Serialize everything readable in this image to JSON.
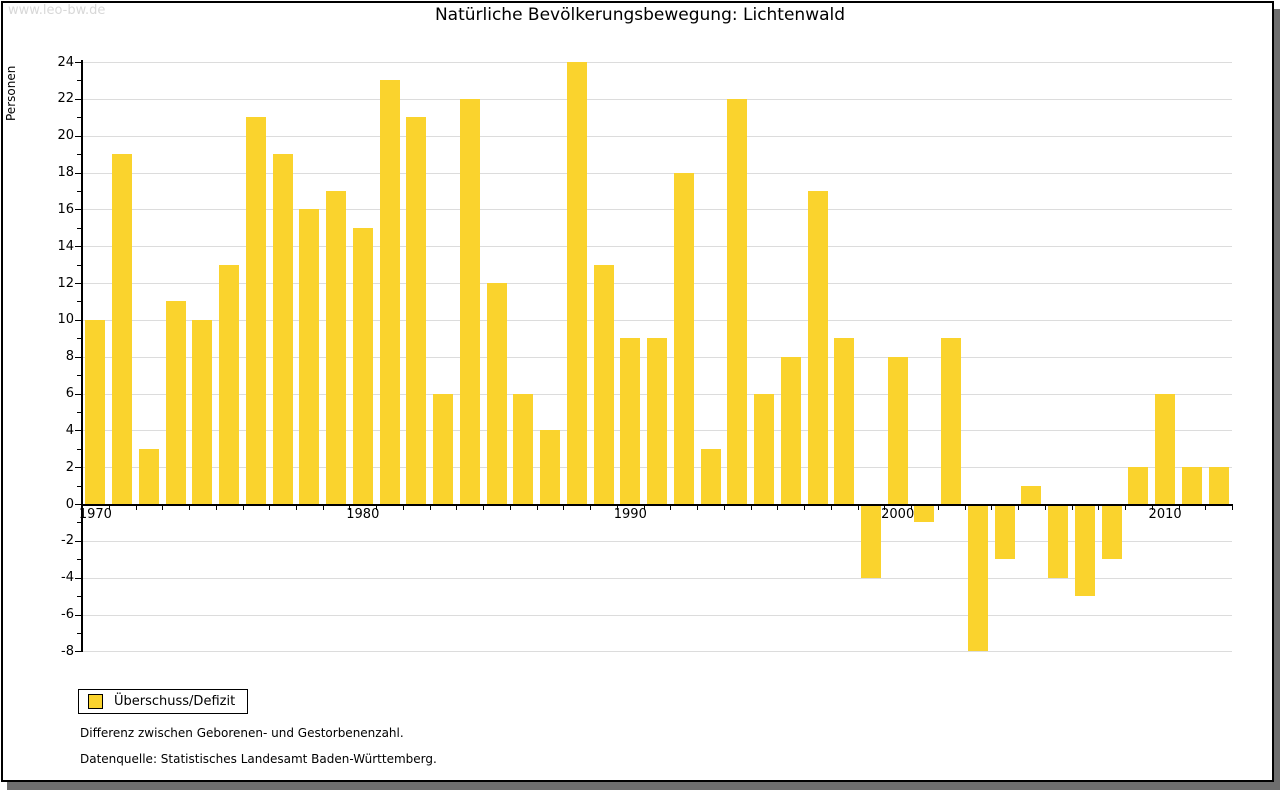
{
  "watermark": "www.leo-bw.de",
  "title": "Natürliche Bevölkerungsbewegung: Lichtenwald",
  "legend": {
    "label": "Überschuss/Defizit"
  },
  "footnotes": {
    "line1": "Differenz zwischen Geborenen- und Gestorbenenzahl.",
    "line2": "Datenquelle: Statistisches Landesamt Baden-Württemberg."
  },
  "colors": {
    "bar": "#FAD32D",
    "grid": "#DCDCDC",
    "axis": "#000000",
    "watermark": "#D8D8D8",
    "frame_shadow": "#6E6E6E"
  },
  "chart_data": {
    "type": "bar",
    "title": "Natürliche Bevölkerungsbewegung: Lichtenwald",
    "series_name": "Überschuss/Defizit",
    "ylabel": "Personen",
    "x": [
      1970,
      1971,
      1972,
      1973,
      1974,
      1975,
      1976,
      1977,
      1978,
      1979,
      1980,
      1981,
      1982,
      1983,
      1984,
      1985,
      1986,
      1987,
      1988,
      1989,
      1990,
      1991,
      1992,
      1993,
      1994,
      1995,
      1996,
      1997,
      1998,
      1999,
      2000,
      2001,
      2002,
      2003,
      2004,
      2005,
      2006,
      2007,
      2008,
      2009,
      2010,
      2011,
      2012
    ],
    "values": [
      10,
      19,
      3,
      11,
      10,
      13,
      21,
      19,
      16,
      17,
      15,
      23,
      21,
      6,
      22,
      12,
      6,
      4,
      24,
      13,
      9,
      9,
      18,
      3,
      22,
      6,
      8,
      17,
      9,
      -4,
      8,
      -1,
      9,
      -8,
      -3,
      1,
      -4,
      -5,
      -3,
      2,
      6,
      2,
      2
    ],
    "ylim": [
      -8,
      24
    ],
    "ytick_step": 2,
    "ytick_minor_step": 1,
    "xtick_labels": [
      1970,
      1980,
      1990,
      2000,
      2010
    ],
    "grid": true,
    "legend_position": "bottom-left"
  }
}
